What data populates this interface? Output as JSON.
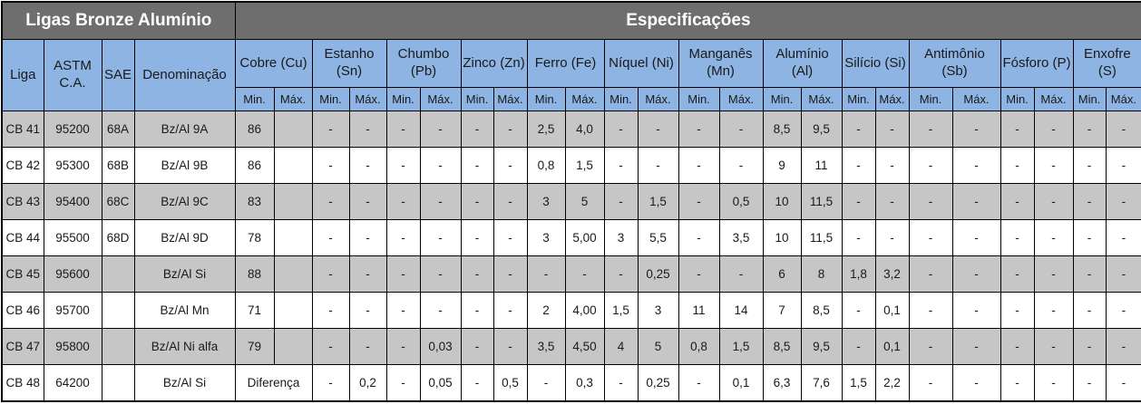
{
  "header": {
    "title_left": "Ligas Bronze Alumínio",
    "title_right": "Especificações",
    "fixed_columns": [
      "Liga",
      "ASTM C.A.",
      "SAE",
      "Denominação"
    ],
    "element_groups": [
      "Cobre (Cu)",
      "Estanho (Sn)",
      "Chumbo (Pb)",
      "Zinco (Zn)",
      "Ferro (Fe)",
      "Níquel (Ni)",
      "Manganês (Mn)",
      "Alumínio (Al)",
      "Silício (Si)",
      "Antimônio (Sb)",
      "Fósforo (P)",
      "Enxofre (S)"
    ],
    "min_label": "Min.",
    "max_label": "Máx."
  },
  "colors": {
    "title_bg": "#6f6e6e",
    "title_text": "#ffffff",
    "header_bg": "#8db4e2",
    "row_gray": "#c6c6c6",
    "row_white": "#ffffff",
    "border": "#000000"
  },
  "rows": [
    {
      "liga": "CB 41",
      "astm": "95200",
      "sae": "68A",
      "denominacao": "Bz/Al 9A",
      "values": [
        [
          "86",
          ""
        ],
        [
          "-",
          "-"
        ],
        [
          "-",
          "-"
        ],
        [
          "-",
          "-"
        ],
        [
          "2,5",
          "4,0"
        ],
        [
          "-",
          "-"
        ],
        [
          "-",
          "-"
        ],
        [
          "8,5",
          "9,5"
        ],
        [
          "-",
          "-"
        ],
        [
          "-",
          "-"
        ],
        [
          "-",
          "-"
        ],
        [
          "-",
          "-"
        ]
      ]
    },
    {
      "liga": "CB 42",
      "astm": "95300",
      "sae": "68B",
      "denominacao": "Bz/Al 9B",
      "values": [
        [
          "86",
          ""
        ],
        [
          "-",
          "-"
        ],
        [
          "-",
          "-"
        ],
        [
          "-",
          "-"
        ],
        [
          "0,8",
          "1,5"
        ],
        [
          "-",
          "-"
        ],
        [
          "-",
          "-"
        ],
        [
          "9",
          "11"
        ],
        [
          "-",
          "-"
        ],
        [
          "-",
          "-"
        ],
        [
          "-",
          "-"
        ],
        [
          "-",
          "-"
        ]
      ]
    },
    {
      "liga": "CB 43",
      "astm": "95400",
      "sae": "68C",
      "denominacao": "Bz/Al 9C",
      "values": [
        [
          "83",
          ""
        ],
        [
          "-",
          "-"
        ],
        [
          "-",
          "-"
        ],
        [
          "-",
          "-"
        ],
        [
          "3",
          "5"
        ],
        [
          "-",
          "1,5"
        ],
        [
          "-",
          "0,5"
        ],
        [
          "10",
          "11,5"
        ],
        [
          "-",
          "-"
        ],
        [
          "-",
          "-"
        ],
        [
          "-",
          "-"
        ],
        [
          "-",
          "-"
        ]
      ]
    },
    {
      "liga": "CB 44",
      "astm": "95500",
      "sae": "68D",
      "denominacao": "Bz/Al 9D",
      "values": [
        [
          "78",
          ""
        ],
        [
          "-",
          "-"
        ],
        [
          "-",
          "-"
        ],
        [
          "-",
          "-"
        ],
        [
          "3",
          "5,00"
        ],
        [
          "3",
          "5,5"
        ],
        [
          "-",
          "3,5"
        ],
        [
          "10",
          "11,5"
        ],
        [
          "-",
          "-"
        ],
        [
          "-",
          "-"
        ],
        [
          "-",
          "-"
        ],
        [
          "-",
          "-"
        ]
      ]
    },
    {
      "liga": "CB 45",
      "astm": "95600",
      "sae": "",
      "denominacao": "Bz/Al Si",
      "values": [
        [
          "88",
          ""
        ],
        [
          "-",
          "-"
        ],
        [
          "-",
          "-"
        ],
        [
          "-",
          "-"
        ],
        [
          "-",
          "-"
        ],
        [
          "-",
          "0,25"
        ],
        [
          "-",
          "-"
        ],
        [
          "6",
          "8"
        ],
        [
          "1,8",
          "3,2"
        ],
        [
          "-",
          "-"
        ],
        [
          "-",
          "-"
        ],
        [
          "-",
          "-"
        ]
      ]
    },
    {
      "liga": "CB 46",
      "astm": "95700",
      "sae": "",
      "denominacao": "Bz/Al Mn",
      "values": [
        [
          "71",
          ""
        ],
        [
          "-",
          "-"
        ],
        [
          "-",
          "-"
        ],
        [
          "-",
          "-"
        ],
        [
          "2",
          "4,00"
        ],
        [
          "1,5",
          "3"
        ],
        [
          "11",
          "14"
        ],
        [
          "7",
          "8,5"
        ],
        [
          "-",
          "0,1"
        ],
        [
          "-",
          "-"
        ],
        [
          "-",
          "-"
        ],
        [
          "-",
          "-"
        ]
      ]
    },
    {
      "liga": "CB 47",
      "astm": "95800",
      "sae": "",
      "denominacao": "Bz/Al Ni alfa",
      "values": [
        [
          "79",
          ""
        ],
        [
          "-",
          "-"
        ],
        [
          "-",
          "0,03"
        ],
        [
          "-",
          "-"
        ],
        [
          "3,5",
          "4,50"
        ],
        [
          "4",
          "5"
        ],
        [
          "0,8",
          "1,5"
        ],
        [
          "8,5",
          "9,5"
        ],
        [
          "-",
          "0,1"
        ],
        [
          "-",
          "-"
        ],
        [
          "-",
          "-"
        ],
        [
          "-",
          "-"
        ]
      ]
    },
    {
      "liga": "CB 48",
      "astm": "64200",
      "sae": "",
      "denominacao": "Bz/Al Si",
      "values": [
        "Diferença",
        [
          "-",
          "0,2"
        ],
        [
          "-",
          "0,05"
        ],
        [
          "-",
          "0,5"
        ],
        [
          "-",
          "0,3"
        ],
        [
          "-",
          "0,25"
        ],
        [
          "-",
          "0,1"
        ],
        [
          "6,3",
          "7,6"
        ],
        [
          "1,5",
          "2,2"
        ],
        [
          "-",
          "-"
        ],
        [
          "-",
          "-"
        ],
        [
          "-",
          "-"
        ]
      ]
    }
  ]
}
